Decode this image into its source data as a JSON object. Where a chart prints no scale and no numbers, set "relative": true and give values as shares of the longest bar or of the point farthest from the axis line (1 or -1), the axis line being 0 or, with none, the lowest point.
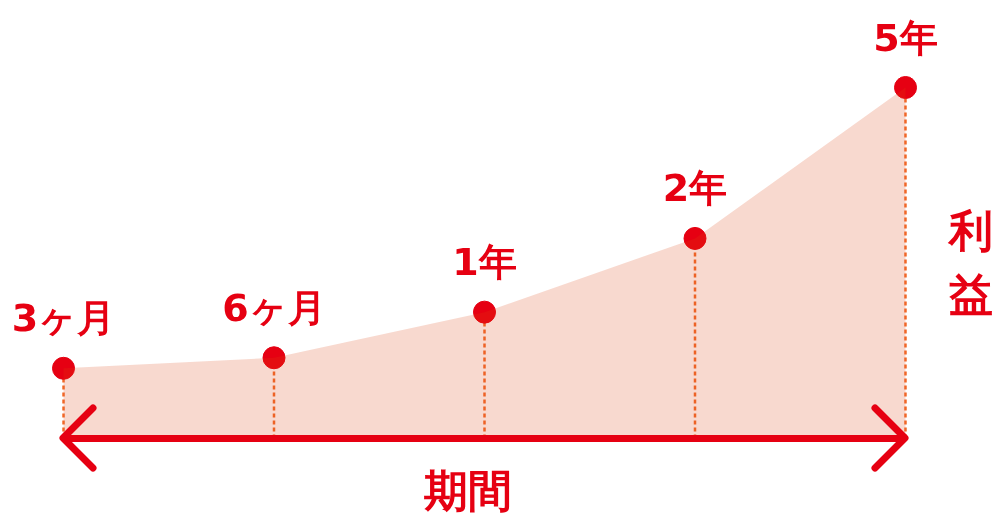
{
  "chart_data": {
    "type": "area",
    "relative": true,
    "categories": [
      "3ヶ月",
      "6ヶ月",
      "1年",
      "2年",
      "5年"
    ],
    "xlabel": "期間",
    "ylabel": "利益",
    "line_style": "dashed",
    "series": [
      {
        "color": "#f8d9cf",
        "values": [
          0.2,
          0.23,
          0.36,
          0.57,
          1
        ]
      },
      {
        "type": "lollipop",
        "marker": "circle",
        "color": "#e60012",
        "values": [
          0.2,
          0.23,
          0.36,
          0.57,
          1
        ]
      }
    ]
  }
}
